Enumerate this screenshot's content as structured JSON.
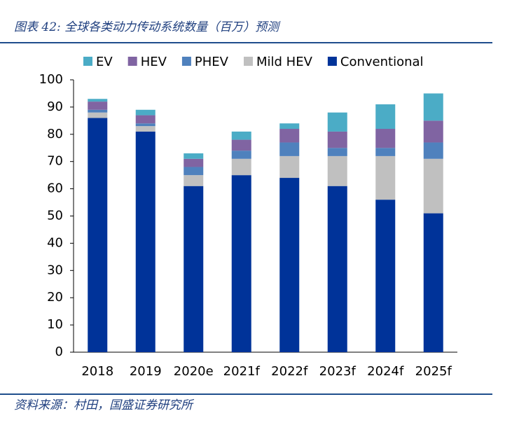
{
  "chart_data": {
    "type": "stacked-bar",
    "title": "图表 42: 全球各类动力传动系统数量（百万）预测",
    "source": "资料来源：村田，国盛证券研究所",
    "categories": [
      "2018",
      "2019",
      "2020e",
      "2021f",
      "2022f",
      "2023f",
      "2024f",
      "2025f"
    ],
    "series": [
      {
        "name": "EV",
        "color": "#4bacc6",
        "values": [
          1,
          2,
          2,
          3,
          2,
          7,
          9,
          10
        ]
      },
      {
        "name": "HEV",
        "color": "#8064a2",
        "values": [
          3,
          3,
          3,
          4,
          5,
          6,
          7,
          8
        ]
      },
      {
        "name": "PHEV",
        "color": "#4f81bd",
        "values": [
          1,
          1,
          3,
          3,
          5,
          3,
          3,
          6
        ]
      },
      {
        "name": "Mild HEV",
        "color": "#c0c0c0",
        "values": [
          2,
          2,
          4,
          6,
          8,
          11,
          16,
          20
        ]
      },
      {
        "name": "Conventional",
        "color": "#003399",
        "values": [
          86,
          81,
          61,
          65,
          64,
          61,
          56,
          51
        ]
      }
    ],
    "ylim": [
      0,
      100
    ],
    "yticks": [
      0,
      10,
      20,
      30,
      40,
      50,
      60,
      70,
      80,
      90,
      100
    ],
    "legend": "top",
    "grid": false
  }
}
